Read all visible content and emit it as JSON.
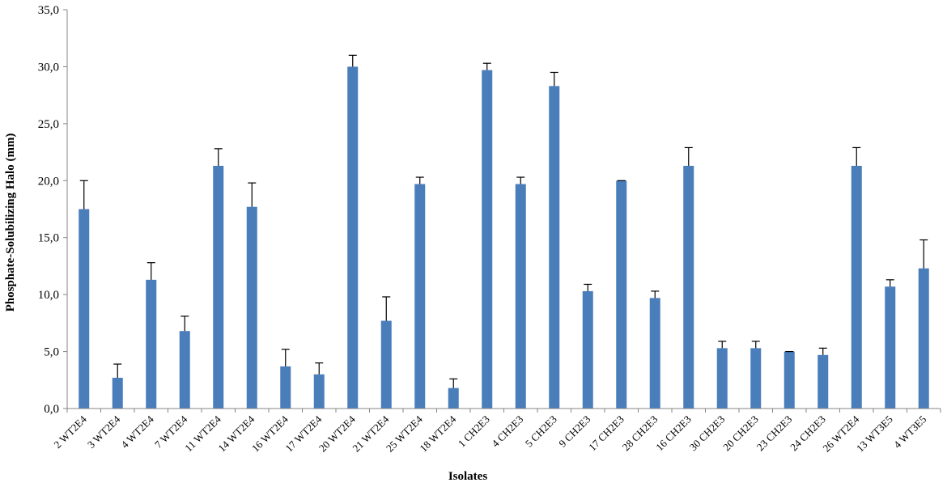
{
  "chart_data": {
    "type": "bar",
    "title": "",
    "xlabel": "Isolates",
    "ylabel": "Phosphate-Solubilizing Halo (mm)",
    "ylim": [
      0,
      35
    ],
    "yticks": [
      "0,0",
      "5,0",
      "10,0",
      "15,0",
      "20,0",
      "25,0",
      "30,0",
      "35,0"
    ],
    "grid": false,
    "legend": "none",
    "bar_color": "#4a7ebb",
    "error_color": "#000000",
    "categories": [
      "2 WT2E4",
      "3 WT2E4",
      "4 WT2E4",
      "7 WT2E4",
      "11 WT2E4",
      "14 WT2E4",
      "16 WT2E4",
      "17 WT2E4",
      "20 WT2E4",
      "21 WT2E4",
      "25 WT2E4",
      "18 WT2E4",
      "1 CH2E3",
      "4 CH2E3",
      "5 CH2E3",
      "9 CH2E3",
      "17 CH2E3",
      "28 CH2E3",
      "16 CH2E3",
      "30 CH2E3",
      "20 CH2E3",
      "23 CH2E3",
      "24 CH2E3",
      "26 WT2E4",
      "13 WT3E5",
      "4 WT3E5"
    ],
    "values": [
      17.5,
      2.7,
      11.3,
      6.8,
      21.3,
      17.7,
      3.7,
      3.0,
      30.0,
      7.7,
      19.7,
      1.8,
      29.7,
      19.7,
      28.3,
      10.3,
      20.0,
      9.7,
      21.3,
      5.3,
      5.3,
      5.0,
      4.7,
      21.3,
      10.7,
      12.3
    ],
    "errors": [
      2.5,
      1.2,
      1.5,
      1.3,
      1.5,
      2.1,
      1.5,
      1.0,
      1.0,
      2.1,
      0.6,
      0.8,
      0.6,
      0.6,
      1.2,
      0.6,
      0.0,
      0.6,
      1.6,
      0.6,
      0.6,
      0.0,
      0.6,
      1.6,
      0.6,
      2.5
    ]
  }
}
